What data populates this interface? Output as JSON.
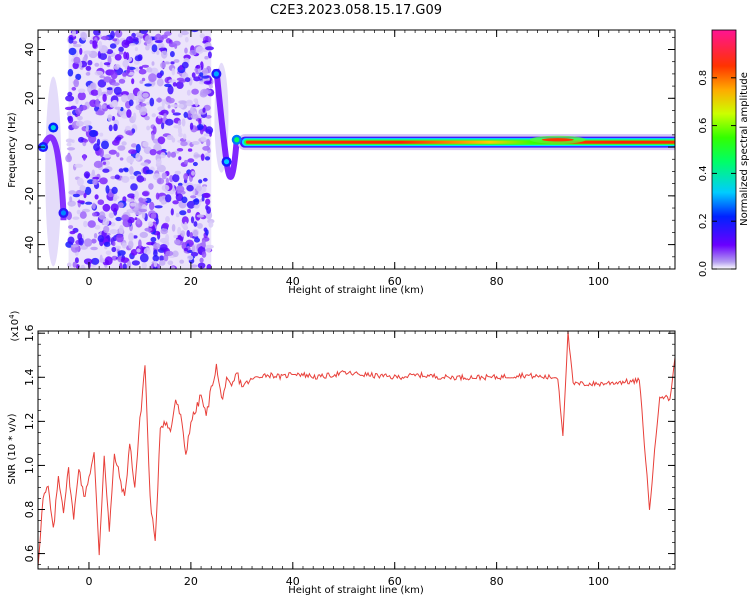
{
  "title": "C2E3.2023.058.15.17.G09",
  "chart_data": [
    {
      "type": "heatmap",
      "xlabel": "Height of straight line (km)",
      "ylabel": "Frequency (Hz)",
      "xlim": [
        -10,
        115
      ],
      "ylim": [
        -50,
        48
      ],
      "x_ticks": [
        0,
        20,
        40,
        60,
        80,
        100
      ],
      "y_ticks": [
        -40,
        -20,
        0,
        20,
        40
      ],
      "grid": false,
      "colorbar": {
        "label": "Normalized spectral amplitude",
        "range": [
          0,
          1
        ],
        "ticks": [
          "0.0",
          "0.2",
          "0.4",
          "0.6",
          "0.8"
        ],
        "colormap": [
          "#6a00a8",
          "#3c00ff",
          "#0066ff",
          "#00e5ff",
          "#00ff7f",
          "#33ff00",
          "#ccff00",
          "#ffcc00",
          "#ff5500",
          "#ff0044",
          "#ff1493"
        ]
      },
      "ridge": {
        "frequency_hz": 2,
        "x_range": [
          30,
          115
        ],
        "peak_value": 0.9
      },
      "noise_region": {
        "x_range": [
          -4,
          24
        ],
        "y_range": [
          -50,
          48
        ],
        "value_range": [
          0.02,
          0.2
        ]
      },
      "features": [
        {
          "x": -9,
          "y": 0,
          "value": 0.3
        },
        {
          "x": -7,
          "y": 8,
          "value": 0.35
        },
        {
          "x": -5,
          "y": -27,
          "value": 0.28
        },
        {
          "x": 25,
          "y": 30,
          "value": 0.3
        },
        {
          "x": 27,
          "y": -6,
          "value": 0.32
        },
        {
          "x": 29,
          "y": 3,
          "value": 0.45
        }
      ]
    },
    {
      "type": "line",
      "xlabel": "Height of straight line (km)",
      "ylabel": "SNR (10 * v/v)",
      "y_multiplier": "(x10",
      "y_multiplier_exp": "4",
      "y_multiplier_close": ")",
      "xlim": [
        -10,
        115
      ],
      "ylim": [
        0.53,
        1.61
      ],
      "x_ticks": [
        0,
        20,
        40,
        60,
        80,
        100
      ],
      "y_ticks": [
        0.6,
        0.8,
        1.0,
        1.2,
        1.4,
        1.6
      ],
      "y_tick_labels": [
        "0.6",
        "0.8",
        "1.0",
        "1.2",
        "1.4",
        "1.6"
      ],
      "color": "#e8403a",
      "grid": false,
      "series": [
        {
          "x": [
            -10,
            -9,
            -8,
            -7,
            -6,
            -5,
            -4,
            -3,
            -2,
            -1,
            0,
            1,
            2,
            3,
            4,
            5,
            6,
            7,
            8,
            9,
            10,
            11,
            12,
            13,
            14,
            15,
            16,
            17,
            18,
            19,
            20,
            21,
            22,
            23,
            24,
            25,
            26,
            27,
            28,
            29,
            30,
            32,
            34,
            36,
            38,
            40,
            45,
            50,
            55,
            60,
            65,
            70,
            75,
            80,
            85,
            90,
            92,
            93,
            94,
            95,
            100,
            105,
            107,
            108,
            109,
            110,
            112,
            114,
            115
          ],
          "values": [
            0.55,
            0.85,
            0.9,
            0.7,
            0.95,
            0.8,
            0.98,
            0.75,
            1.0,
            0.85,
            0.95,
            1.05,
            0.6,
            1.05,
            0.7,
            1.05,
            0.95,
            0.85,
            1.1,
            0.9,
            1.2,
            1.46,
            0.85,
            0.64,
            1.18,
            1.2,
            1.15,
            1.3,
            1.22,
            1.05,
            1.2,
            1.25,
            1.32,
            1.22,
            1.35,
            1.45,
            1.3,
            1.38,
            1.35,
            1.42,
            1.36,
            1.39,
            1.41,
            1.41,
            1.4,
            1.42,
            1.4,
            1.42,
            1.41,
            1.4,
            1.41,
            1.4,
            1.4,
            1.4,
            1.41,
            1.4,
            1.4,
            1.14,
            1.6,
            1.37,
            1.37,
            1.38,
            1.38,
            1.39,
            1.1,
            0.8,
            1.32,
            1.3,
            1.49
          ]
        }
      ]
    }
  ]
}
